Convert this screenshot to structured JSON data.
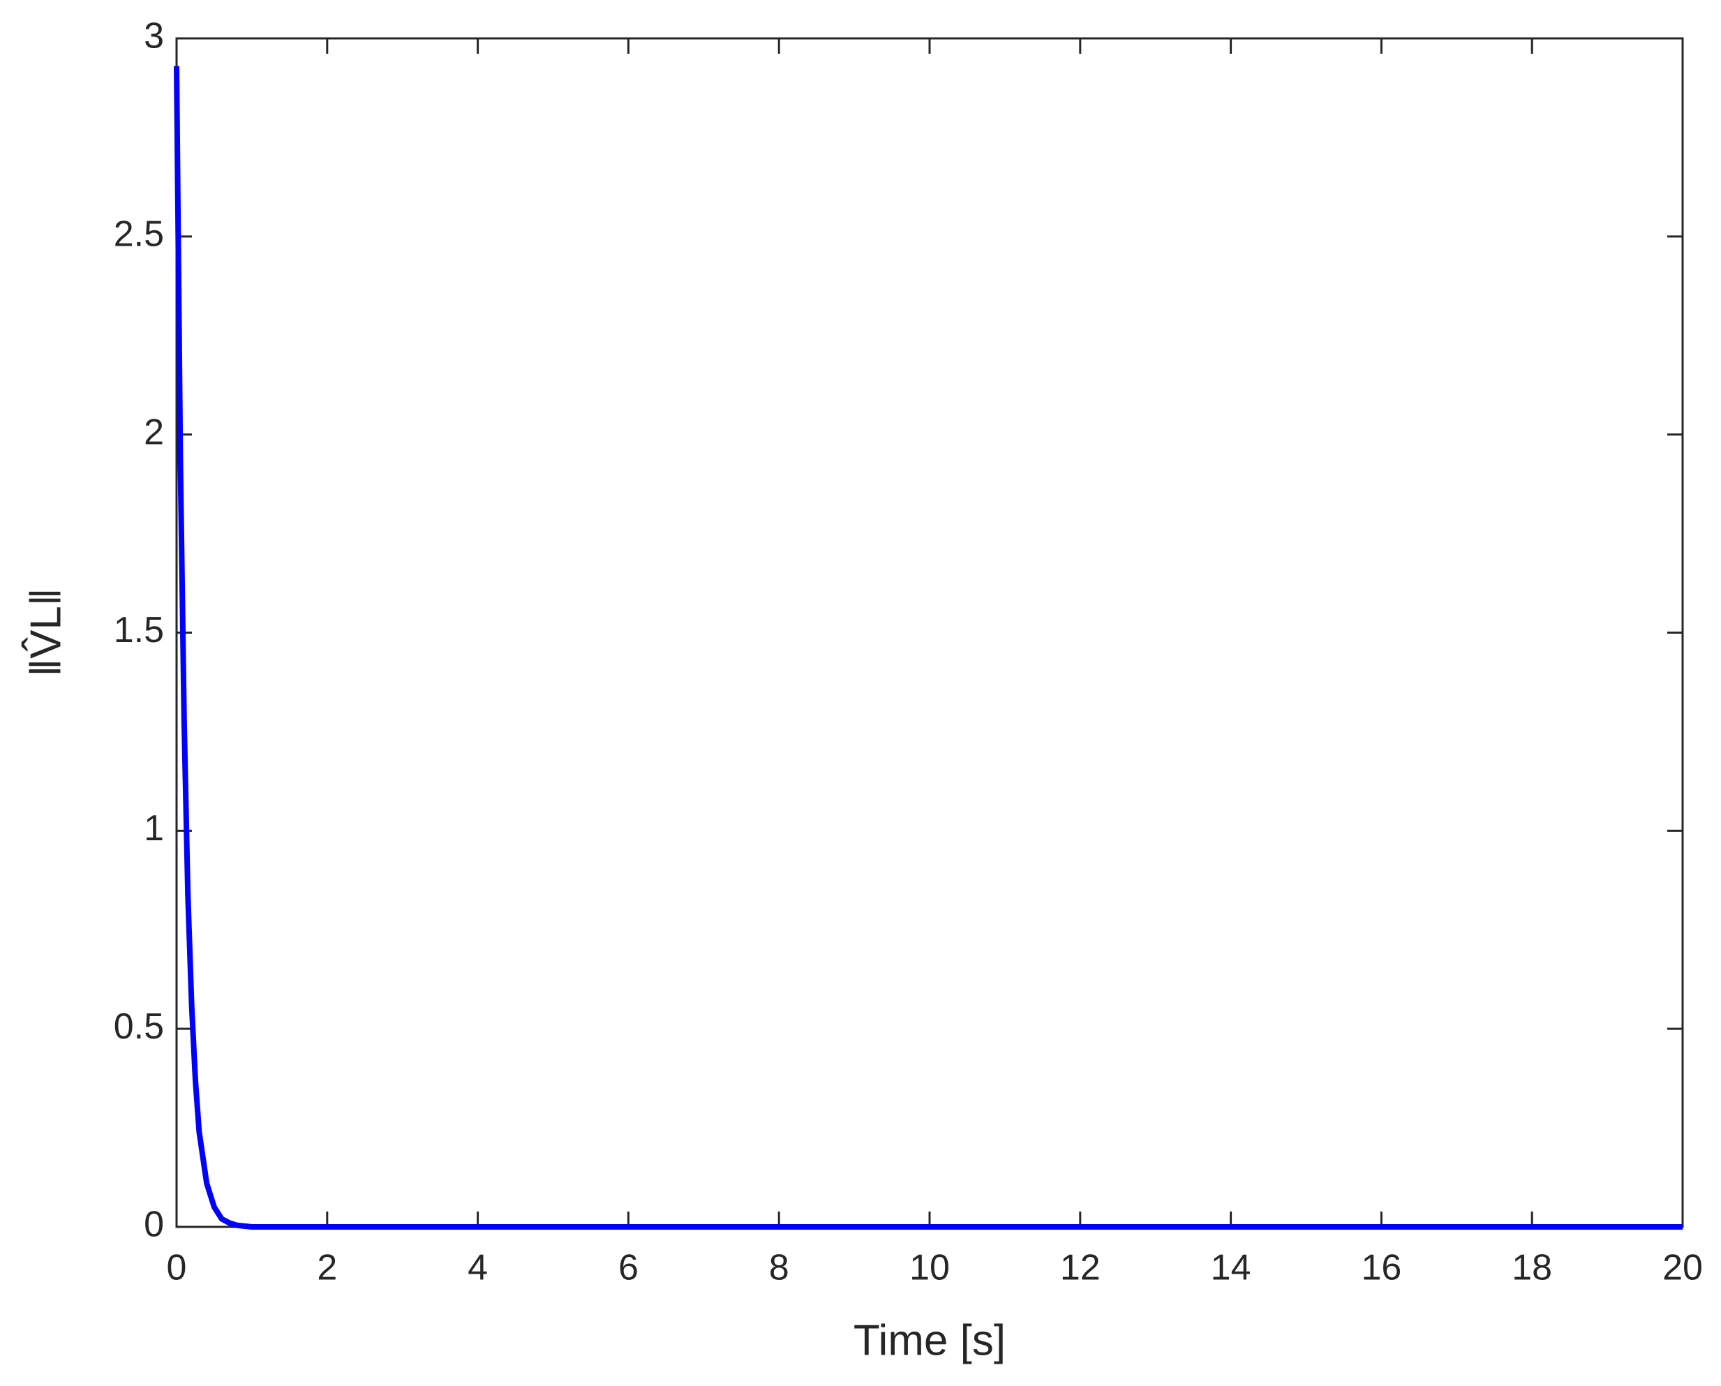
{
  "chart_data": {
    "type": "line",
    "x_label": "Time [s]",
    "y_label": "‖V̂L‖",
    "x": [
      0,
      0.05,
      0.1,
      0.15,
      0.2,
      0.25,
      0.3,
      0.4,
      0.5,
      0.6,
      0.7,
      0.8,
      1,
      2,
      20
    ],
    "series": [
      {
        "color": "#0000ff",
        "values": [
          2.93,
          1.94,
          1.28,
          0.84,
          0.56,
          0.37,
          0.24,
          0.11,
          0.05,
          0.02,
          0.01,
          0.004,
          0,
          0,
          0
        ]
      }
    ],
    "xlim": [
      0,
      20
    ],
    "xticks": [
      0,
      2,
      4,
      6,
      8,
      10,
      12,
      14,
      16,
      18,
      20
    ],
    "ylim": [
      0,
      3
    ],
    "yticks": [
      0,
      0.5,
      1,
      1.5,
      2,
      2.5,
      3
    ],
    "grid": false
  }
}
